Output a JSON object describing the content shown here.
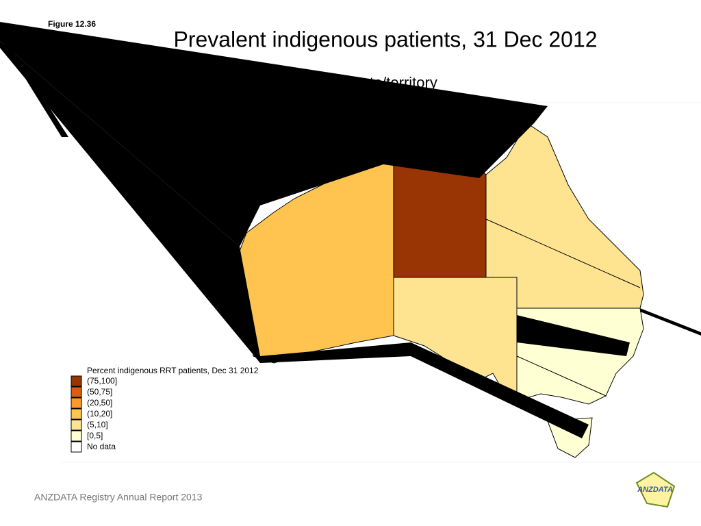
{
  "figure_label": "Figure 12.36",
  "title": "Prevalent indigenous patients, 31 Dec 2012",
  "subtitle": "by state/territory",
  "legend": {
    "title": "Percent indigenous RRT patients, Dec 31 2012",
    "items": [
      {
        "label": "(75,100]",
        "color": "#993404"
      },
      {
        "label": "(50,75]",
        "color": "#d95f0e"
      },
      {
        "label": "(20,50]",
        "color": "#fe9929"
      },
      {
        "label": "(10,20]",
        "color": "#fec44f"
      },
      {
        "label": "(5,10]",
        "color": "#fee391"
      },
      {
        "label": "[0,5]",
        "color": "#ffffd4"
      },
      {
        "label": "No data",
        "color": "#ffffff"
      }
    ]
  },
  "footer": "ANZDATA Registry Annual Report 2013",
  "logo": "ANZDATA"
}
